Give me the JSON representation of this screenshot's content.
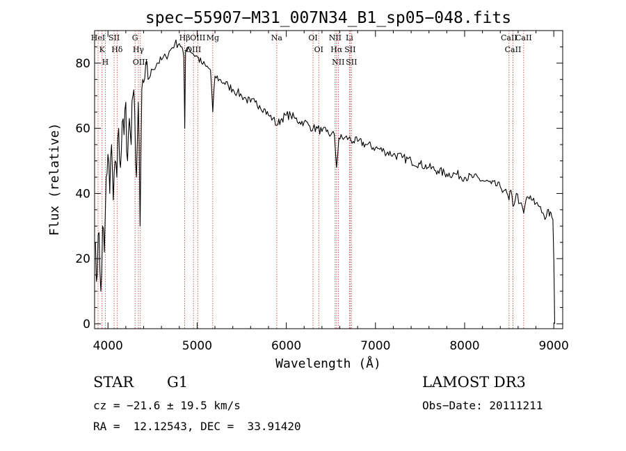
{
  "chart_data": {
    "type": "line",
    "title": "spec−55907−M31_007N34_B1_sp05−048.fits",
    "xlabel": "Wavelength (Å)",
    "ylabel": "Flux (relative)",
    "xlim": [
      3850,
      9100
    ],
    "ylim": [
      -1.5,
      90
    ],
    "xticks": [
      4000,
      5000,
      6000,
      7000,
      8000,
      9000
    ],
    "yticks": [
      0,
      20,
      40,
      60,
      80
    ],
    "tick_labels_x": [
      "4000",
      "5000",
      "6000",
      "7000",
      "8000",
      "9000"
    ],
    "tick_labels_y": [
      "0",
      "20",
      "40",
      "60",
      "80"
    ],
    "series": [
      {
        "name": "flux",
        "x": [
          3860,
          3880,
          3900,
          3920,
          3940,
          3960,
          3980,
          4000,
          4020,
          4040,
          4060,
          4080,
          4100,
          4120,
          4140,
          4160,
          4180,
          4200,
          4220,
          4240,
          4260,
          4280,
          4300,
          4320,
          4340,
          4360,
          4380,
          4400,
          4450,
          4500,
          4550,
          4600,
          4650,
          4700,
          4750,
          4800,
          4830,
          4850,
          4861,
          4870,
          4900,
          4950,
          5000,
          5050,
          5100,
          5150,
          5175,
          5200,
          5250,
          5300,
          5350,
          5400,
          5450,
          5500,
          5550,
          5600,
          5650,
          5700,
          5750,
          5800,
          5850,
          5893,
          5950,
          6000,
          6050,
          6100,
          6150,
          6200,
          6250,
          6300,
          6350,
          6400,
          6450,
          6500,
          6540,
          6563,
          6590,
          6650,
          6700,
          6750,
          6800,
          6900,
          7000,
          7100,
          7200,
          7300,
          7400,
          7500,
          7600,
          7700,
          7800,
          7900,
          8000,
          8100,
          8200,
          8300,
          8400,
          8450,
          8498,
          8520,
          8542,
          8580,
          8620,
          8662,
          8700,
          8750,
          8800,
          8850,
          8880,
          8900,
          8930,
          8950,
          8970,
          8990,
          9000,
          9010
        ],
        "y": [
          25,
          15,
          28,
          10,
          30,
          22,
          45,
          52,
          40,
          55,
          38,
          50,
          45,
          60,
          48,
          62,
          58,
          68,
          50,
          63,
          55,
          70,
          65,
          45,
          68,
          30,
          72,
          74,
          75,
          78,
          80,
          81,
          82,
          84,
          86,
          86,
          85,
          82,
          60,
          84,
          85,
          83,
          82,
          80,
          79,
          78,
          65,
          76,
          75,
          74,
          73,
          72,
          71,
          70,
          69,
          68,
          68,
          67,
          66,
          64,
          63,
          61,
          63,
          64,
          64,
          63,
          62,
          62,
          61,
          60,
          60,
          59,
          59,
          58,
          58,
          48,
          57,
          57,
          57,
          56,
          56,
          55,
          54,
          53,
          52,
          51,
          50,
          49,
          48,
          47,
          46,
          46,
          45,
          45,
          44,
          43,
          42,
          41,
          38,
          41,
          36,
          40,
          37,
          34,
          39,
          38,
          37,
          36,
          34,
          32,
          35,
          33,
          34,
          32,
          20,
          0
        ]
      }
    ],
    "spectral_lines": [
      {
        "wl": 3889,
        "label": "HeI"
      },
      {
        "wl": 3934,
        "label": "K"
      },
      {
        "wl": 3970,
        "label": "H"
      },
      {
        "wl": 4069,
        "label": "SII"
      },
      {
        "wl": 4102,
        "label": "Hδ"
      },
      {
        "wl": 4304,
        "label": "G"
      },
      {
        "wl": 4341,
        "label": "Hγ"
      },
      {
        "wl": 4363,
        "label": "OIII"
      },
      {
        "wl": 4861,
        "label": "Hβ"
      },
      {
        "wl": 4959,
        "label": "OIII"
      },
      {
        "wl": 5007,
        "label": "OIII"
      },
      {
        "wl": 5175,
        "label": "Mg"
      },
      {
        "wl": 5893,
        "label": "Na"
      },
      {
        "wl": 6300,
        "label": "OI"
      },
      {
        "wl": 6364,
        "label": "OI"
      },
      {
        "wl": 6548,
        "label": "NII"
      },
      {
        "wl": 6563,
        "label": "Hα"
      },
      {
        "wl": 6583,
        "label": "NII"
      },
      {
        "wl": 6708,
        "label": "Li"
      },
      {
        "wl": 6716,
        "label": "SII"
      },
      {
        "wl": 6731,
        "label": "SII"
      },
      {
        "wl": 8498,
        "label": "CaII"
      },
      {
        "wl": 8542,
        "label": "CaII"
      },
      {
        "wl": 8662,
        "label": "CaII"
      }
    ],
    "grid": false,
    "legend": "none"
  },
  "info": {
    "class_label": "STAR",
    "subclass": "G1",
    "survey": "LAMOST DR3",
    "cz": "cz = −21.6 ± 19.5 km/s",
    "obs_date": "Obs−Date: 20111211",
    "radec": "RA =  12.12543, DEC =  33.91420"
  },
  "colors": {
    "line": "#000000",
    "marker": "#cc3333",
    "axis": "#000000"
  }
}
